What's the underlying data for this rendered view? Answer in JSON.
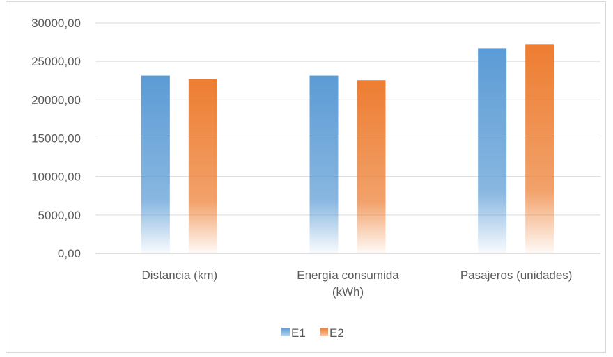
{
  "chart_data": {
    "type": "bar",
    "categories": [
      [
        "Distancia (km)"
      ],
      [
        "Energía consumida",
        "(kWh)"
      ],
      [
        "Pasajeros (unidades)"
      ]
    ],
    "series": [
      {
        "name": "E1",
        "values": [
          23150,
          23150,
          26700
        ],
        "color": "#5b9bd5"
      },
      {
        "name": "E2",
        "values": [
          22700,
          22550,
          27250
        ],
        "color": "#ed7d31"
      }
    ],
    "ylim": [
      0,
      30000
    ],
    "yticks": [
      0,
      5000,
      10000,
      15000,
      20000,
      25000,
      30000
    ],
    "ytick_labels": [
      "0,00",
      "5000,00",
      "10000,00",
      "15000,00",
      "20000,00",
      "25000,00",
      "30000,00"
    ],
    "grid": true,
    "legend_position": "bottom",
    "title": "",
    "xlabel": "",
    "ylabel": ""
  }
}
